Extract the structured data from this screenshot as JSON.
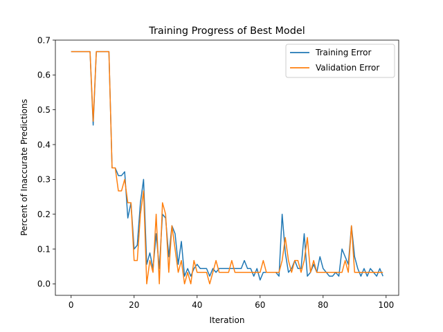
{
  "chart_data": {
    "type": "line",
    "title": "Training Progress of Best Model",
    "xlabel": "Iteration",
    "ylabel": "Percent of Inaccurate Predictions",
    "xlim": [
      -5,
      104
    ],
    "ylim": [
      -0.033,
      0.7
    ],
    "x_ticks": [
      0,
      20,
      40,
      60,
      80,
      100
    ],
    "x_tick_labels": [
      "0",
      "20",
      "40",
      "60",
      "80",
      "100"
    ],
    "y_ticks": [
      0.0,
      0.1,
      0.2,
      0.3,
      0.4,
      0.5,
      0.6,
      0.7
    ],
    "y_tick_labels": [
      "0.0",
      "0.1",
      "0.2",
      "0.3",
      "0.4",
      "0.5",
      "0.6",
      "0.7"
    ],
    "grid": false,
    "legend_position": "top-right",
    "series": [
      {
        "name": "Training Error",
        "color": "#1f77b4",
        "x": [
          0,
          1,
          2,
          3,
          4,
          5,
          6,
          7,
          8,
          9,
          10,
          11,
          12,
          13,
          14,
          15,
          16,
          17,
          18,
          19,
          20,
          21,
          22,
          23,
          24,
          25,
          26,
          27,
          28,
          29,
          30,
          31,
          32,
          33,
          34,
          35,
          36,
          37,
          38,
          39,
          40,
          41,
          42,
          43,
          44,
          45,
          46,
          47,
          48,
          49,
          50,
          51,
          52,
          53,
          54,
          55,
          56,
          57,
          58,
          59,
          60,
          61,
          62,
          63,
          64,
          65,
          66,
          67,
          68,
          69,
          70,
          71,
          72,
          73,
          74,
          75,
          76,
          77,
          78,
          79,
          80,
          81,
          82,
          83,
          84,
          85,
          86,
          87,
          88,
          89,
          90,
          91,
          92,
          93,
          94,
          95,
          96,
          97,
          98,
          99
        ],
        "values": [
          0.667,
          0.667,
          0.667,
          0.667,
          0.667,
          0.667,
          0.667,
          0.456,
          0.667,
          0.667,
          0.667,
          0.667,
          0.667,
          0.333,
          0.333,
          0.311,
          0.311,
          0.322,
          0.189,
          0.233,
          0.1,
          0.111,
          0.233,
          0.3,
          0.056,
          0.089,
          0.044,
          0.144,
          0.044,
          0.2,
          0.189,
          0.078,
          0.167,
          0.144,
          0.056,
          0.122,
          0.022,
          0.044,
          0.022,
          0.044,
          0.056,
          0.044,
          0.044,
          0.044,
          0.022,
          0.044,
          0.033,
          0.044,
          0.044,
          0.044,
          0.044,
          0.044,
          0.044,
          0.044,
          0.044,
          0.067,
          0.044,
          0.044,
          0.022,
          0.044,
          0.011,
          0.033,
          0.033,
          0.033,
          0.033,
          0.033,
          0.022,
          0.2,
          0.089,
          0.033,
          0.044,
          0.067,
          0.044,
          0.044,
          0.144,
          0.022,
          0.033,
          0.056,
          0.033,
          0.078,
          0.044,
          0.033,
          0.022,
          0.022,
          0.033,
          0.022,
          0.1,
          0.078,
          0.056,
          0.167,
          0.078,
          0.044,
          0.022,
          0.044,
          0.022,
          0.044,
          0.033,
          0.022,
          0.044,
          0.022
        ]
      },
      {
        "name": "Validation Error",
        "color": "#ff7f0e",
        "x": [
          0,
          1,
          2,
          3,
          4,
          5,
          6,
          7,
          8,
          9,
          10,
          11,
          12,
          13,
          14,
          15,
          16,
          17,
          18,
          19,
          20,
          21,
          22,
          23,
          24,
          25,
          26,
          27,
          28,
          29,
          30,
          31,
          32,
          33,
          34,
          35,
          36,
          37,
          38,
          39,
          40,
          41,
          42,
          43,
          44,
          45,
          46,
          47,
          48,
          49,
          50,
          51,
          52,
          53,
          54,
          55,
          56,
          57,
          58,
          59,
          60,
          61,
          62,
          63,
          64,
          65,
          66,
          67,
          68,
          69,
          70,
          71,
          72,
          73,
          74,
          75,
          76,
          77,
          78,
          79,
          80,
          81,
          82,
          83,
          84,
          85,
          86,
          87,
          88,
          89,
          90,
          91,
          92,
          93,
          94,
          95,
          96,
          97,
          98,
          99
        ],
        "values": [
          0.667,
          0.667,
          0.667,
          0.667,
          0.667,
          0.667,
          0.667,
          0.467,
          0.667,
          0.667,
          0.667,
          0.667,
          0.667,
          0.333,
          0.333,
          0.267,
          0.267,
          0.3,
          0.233,
          0.233,
          0.067,
          0.067,
          0.2,
          0.267,
          0.0,
          0.067,
          0.033,
          0.2,
          0.0,
          0.233,
          0.2,
          0.033,
          0.167,
          0.1,
          0.033,
          0.067,
          0.0,
          0.033,
          0.0,
          0.067,
          0.033,
          0.033,
          0.033,
          0.033,
          0.0,
          0.033,
          0.067,
          0.033,
          0.033,
          0.033,
          0.033,
          0.067,
          0.033,
          0.033,
          0.033,
          0.033,
          0.033,
          0.033,
          0.033,
          0.033,
          0.033,
          0.067,
          0.033,
          0.033,
          0.033,
          0.033,
          0.033,
          0.067,
          0.133,
          0.067,
          0.033,
          0.067,
          0.067,
          0.033,
          0.067,
          0.133,
          0.033,
          0.067,
          0.033,
          0.033,
          0.033,
          0.033,
          0.033,
          0.033,
          0.033,
          0.033,
          0.033,
          0.067,
          0.033,
          0.167,
          0.033,
          0.033,
          0.033,
          0.033,
          0.033,
          0.033,
          0.033,
          0.033,
          0.033,
          0.033
        ]
      }
    ]
  }
}
